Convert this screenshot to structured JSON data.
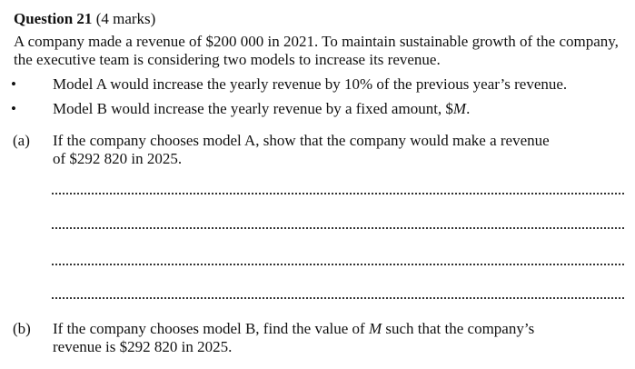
{
  "question": {
    "title": "Question 21",
    "marks": "(4 marks)",
    "intro_line1": "A company made a revenue of $200 000 in 2021. To maintain sustainable growth of the company,",
    "intro_line2": "the executive team is considering two models to increase its revenue.",
    "bullets": [
      {
        "symbol": "•",
        "text": "Model A would increase the yearly revenue by 10% of the previous year’s revenue."
      },
      {
        "symbol": "•",
        "text": "Model B would increase the yearly revenue by a fixed amount, $M."
      }
    ],
    "parts": [
      {
        "label": "(a)",
        "line1": "If the company chooses model A, show that the company would make a revenue",
        "line2": "of $292 820 in 2025."
      },
      {
        "label": "(b)",
        "line1": "If the company chooses model B, find the value of M such that the company’s",
        "line2": "revenue is $292 820 in 2025."
      }
    ]
  }
}
